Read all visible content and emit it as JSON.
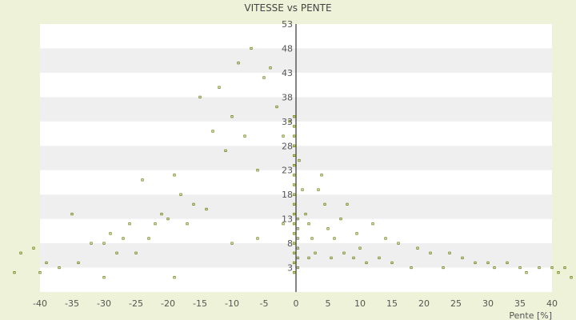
{
  "chart_data": {
    "type": "scatter",
    "title": "VITESSE vs PENTE",
    "xlabel": "Pente [%]",
    "ylabel": "",
    "xlim": [
      -40,
      40
    ],
    "ylim": [
      -2,
      53
    ],
    "x_ticks": [
      -40,
      -35,
      -30,
      -25,
      -20,
      -15,
      -10,
      -5,
      0,
      5,
      10,
      15,
      20,
      25,
      30,
      35,
      40
    ],
    "y_ticks": [
      3,
      8,
      13,
      18,
      23,
      28,
      33,
      38,
      43,
      48,
      53
    ],
    "grid": "horizontal bands",
    "point_color": "#6b7a0c",
    "band_color": "#efefef",
    "plot_bg": "#ffffff",
    "series": [
      {
        "values": [
          [
            -44,
            2
          ],
          [
            -43,
            6
          ],
          [
            -41,
            7
          ],
          [
            -40,
            2
          ],
          [
            -39,
            4
          ],
          [
            -37,
            3
          ],
          [
            -35,
            14
          ],
          [
            -34,
            4
          ],
          [
            -32,
            8
          ],
          [
            -30,
            1
          ],
          [
            -30,
            8
          ],
          [
            -29,
            10
          ],
          [
            -28,
            6
          ],
          [
            -27,
            9
          ],
          [
            -26,
            12
          ],
          [
            -25,
            6
          ],
          [
            -24,
            21
          ],
          [
            -23,
            9
          ],
          [
            -22,
            12
          ],
          [
            -21,
            14
          ],
          [
            -20,
            13
          ],
          [
            -19,
            22
          ],
          [
            -19,
            1
          ],
          [
            -18,
            18
          ],
          [
            -17,
            12
          ],
          [
            -16,
            16
          ],
          [
            -15,
            38
          ],
          [
            -14,
            15
          ],
          [
            -13,
            31
          ],
          [
            -12,
            40
          ],
          [
            -11,
            27
          ],
          [
            -10,
            34
          ],
          [
            -9,
            45
          ],
          [
            -8,
            30
          ],
          [
            -7,
            48
          ],
          [
            -6,
            23
          ],
          [
            -5,
            42
          ],
          [
            -4,
            44
          ],
          [
            -3,
            36
          ],
          [
            -2,
            30
          ],
          [
            -1,
            33
          ],
          [
            -2,
            12
          ],
          [
            -6,
            9
          ],
          [
            -10,
            8
          ],
          [
            0.5,
            25
          ],
          [
            1,
            19
          ],
          [
            1.5,
            14
          ],
          [
            2,
            12
          ],
          [
            2,
            5
          ],
          [
            2.5,
            9
          ],
          [
            3,
            6
          ],
          [
            3.5,
            19
          ],
          [
            4,
            22
          ],
          [
            4.5,
            16
          ],
          [
            5,
            11
          ],
          [
            5.5,
            5
          ],
          [
            6,
            9
          ],
          [
            7,
            13
          ],
          [
            7.5,
            6
          ],
          [
            8,
            16
          ],
          [
            9,
            5
          ],
          [
            9.5,
            10
          ],
          [
            10,
            7
          ],
          [
            11,
            4
          ],
          [
            12,
            12
          ],
          [
            13,
            5
          ],
          [
            14,
            9
          ],
          [
            15,
            4
          ],
          [
            16,
            8
          ],
          [
            18,
            3
          ],
          [
            19,
            7
          ],
          [
            21,
            6
          ],
          [
            23,
            3
          ],
          [
            24,
            6
          ],
          [
            26,
            5
          ],
          [
            28,
            4
          ],
          [
            30,
            4
          ],
          [
            31,
            3
          ],
          [
            33,
            4
          ],
          [
            35,
            3
          ],
          [
            36,
            2
          ],
          [
            38,
            3
          ],
          [
            40,
            3
          ],
          [
            41,
            2
          ],
          [
            42,
            3
          ],
          [
            43,
            1
          ],
          [
            -0.3,
            2
          ],
          [
            -0.3,
            4
          ],
          [
            -0.3,
            6
          ],
          [
            -0.3,
            8
          ],
          [
            -0.3,
            10
          ],
          [
            -0.3,
            12
          ],
          [
            -0.3,
            14
          ],
          [
            -0.3,
            16
          ],
          [
            -0.3,
            18
          ],
          [
            -0.3,
            20
          ],
          [
            -0.3,
            22
          ],
          [
            -0.3,
            24
          ],
          [
            -0.3,
            26
          ],
          [
            -0.3,
            28
          ],
          [
            -0.3,
            30
          ],
          [
            -0.3,
            32
          ],
          [
            -0.3,
            34
          ],
          [
            0.3,
            3
          ],
          [
            0.3,
            5
          ],
          [
            0.3,
            7
          ],
          [
            0.3,
            9
          ],
          [
            0.3,
            11
          ],
          [
            0.3,
            13
          ]
        ]
      }
    ]
  }
}
